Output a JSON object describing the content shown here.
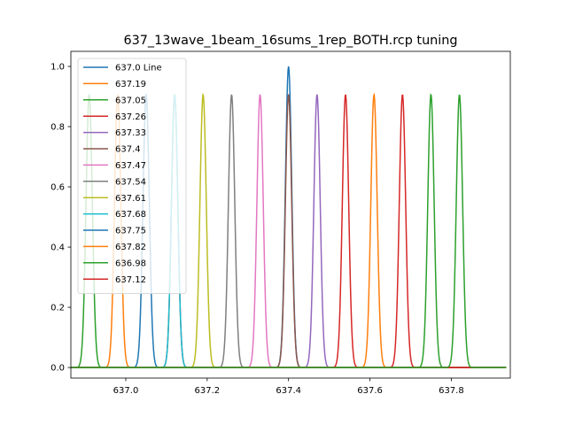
{
  "chart_data": {
    "type": "line",
    "title": "637_13wave_1beam_16sums_1rep_BOTH.rcp tuning",
    "xlabel": "",
    "ylabel": "",
    "xlim": [
      636.865,
      636.945
    ],
    "xlim_note": "",
    "xrange": [
      636.865,
      637.945
    ],
    "ylim": [
      -0.035,
      1.05
    ],
    "x_ticks": [
      637.0,
      637.2,
      637.4,
      637.6,
      637.8
    ],
    "x_tick_labels": [
      "637.0",
      "637.2",
      "637.4",
      "637.6",
      "637.8"
    ],
    "y_ticks": [
      0.0,
      0.2,
      0.4,
      0.6,
      0.8,
      1.0
    ],
    "y_tick_labels": [
      "0.0",
      "0.2",
      "0.4",
      "0.6",
      "0.8",
      "1.0"
    ],
    "grid": false,
    "legend_position": "upper-left",
    "line_profile": {
      "shape": "gaussian",
      "sigma": 0.0078,
      "x_min": 636.865,
      "x_max": 637.935
    },
    "series": [
      {
        "name": "637.0 Line",
        "center": 637.4,
        "peak": 1.0,
        "color": "#1f77b4"
      },
      {
        "name": "637.19",
        "center": 636.98,
        "peak": 0.907,
        "color": "#ff7f0e"
      },
      {
        "name": "637.05",
        "center": 636.91,
        "peak": 0.907,
        "color": "#2ca02c"
      },
      {
        "name": "637.26",
        "center": 637.12,
        "peak": 0.907,
        "color": "#d62728"
      },
      {
        "name": "637.33",
        "center": 637.47,
        "peak": 0.907,
        "color": "#9467bd"
      },
      {
        "name": "637.4",
        "center": 637.4,
        "peak": 0.907,
        "color": "#8c564b"
      },
      {
        "name": "637.47",
        "center": 637.33,
        "peak": 0.907,
        "color": "#e377c2"
      },
      {
        "name": "637.54",
        "center": 637.26,
        "peak": 0.907,
        "color": "#7f7f7f"
      },
      {
        "name": "637.61",
        "center": 637.19,
        "peak": 0.907,
        "color": "#bcbd22"
      },
      {
        "name": "637.68",
        "center": 637.12,
        "peak": 0.907,
        "color": "#17becf"
      },
      {
        "name": "637.75",
        "center": 637.05,
        "peak": 0.907,
        "color": "#1f77b4"
      },
      {
        "name": "637.82",
        "center": 637.61,
        "peak": 0.907,
        "color": "#ff7f0e"
      },
      {
        "name": "636.98",
        "center": 637.75,
        "peak": 0.907,
        "color": "#2ca02c"
      },
      {
        "name": "637.12",
        "center": 637.68,
        "peak": 0.907,
        "color": "#d62728"
      }
    ],
    "extra_traces": [
      {
        "center": 637.54,
        "peak": 0.907,
        "color": "#d62728"
      },
      {
        "center": 637.82,
        "peak": 0.907,
        "color": "#2ca02c"
      }
    ]
  }
}
